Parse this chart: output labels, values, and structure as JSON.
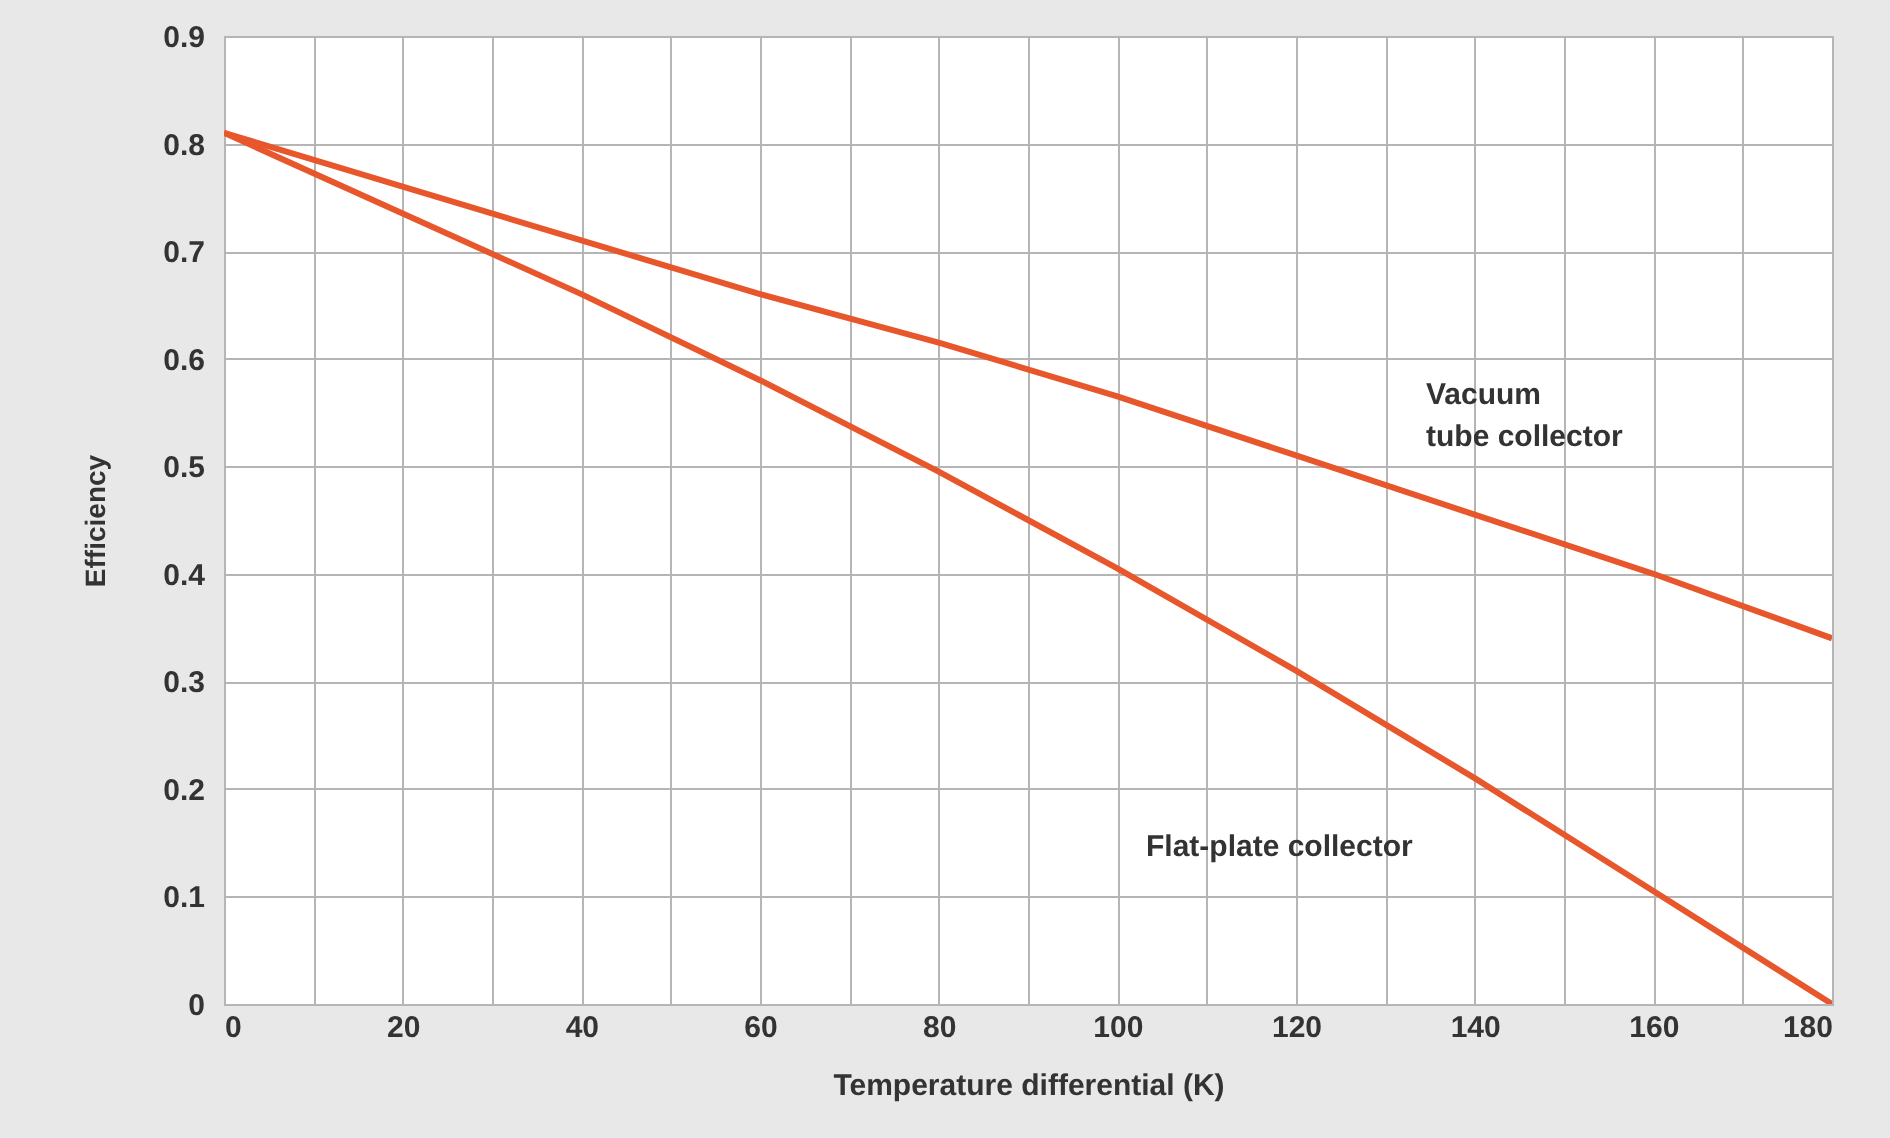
{
  "chart_data": {
    "type": "line",
    "xlabel": "Temperature differential (K)",
    "ylabel": "Efficiency",
    "x": [
      0,
      20,
      40,
      60,
      80,
      100,
      120,
      140,
      160,
      180
    ],
    "series": [
      {
        "color": "#e8572b",
        "values": [
          0.81,
          0.76,
          0.71,
          0.66,
          0.615,
          0.565,
          0.51,
          0.455,
          0.4,
          0.34
        ]
      },
      {
        "color": "#e8572b",
        "values": [
          0.81,
          0.735,
          0.66,
          0.58,
          0.495,
          0.405,
          0.31,
          0.21,
          0.105,
          0.0
        ]
      }
    ],
    "xlim": [
      0,
      180
    ],
    "xticks": [
      0,
      {
        "value": 10,
        "label": null
      },
      20,
      {
        "value": 30,
        "label": null
      },
      40,
      {
        "value": 50,
        "label": null
      },
      60,
      {
        "value": 70,
        "label": null
      },
      80,
      {
        "value": 90,
        "label": null
      },
      100,
      {
        "value": 110,
        "label": null
      },
      120,
      {
        "value": 130,
        "label": null
      },
      140,
      {
        "value": 150,
        "label": null
      },
      160,
      {
        "value": 170,
        "label": null
      },
      180
    ],
    "ylim": [
      0,
      0.9
    ],
    "yticks": [
      0,
      0.1,
      0.2,
      0.3,
      0.4,
      0.5,
      0.6,
      0.7,
      0.8,
      0.9
    ],
    "grid": true,
    "marker": "none",
    "line_style": "solid",
    "annotations": [
      "Vacuum\ntube collector",
      "Flat-plate collector"
    ]
  }
}
